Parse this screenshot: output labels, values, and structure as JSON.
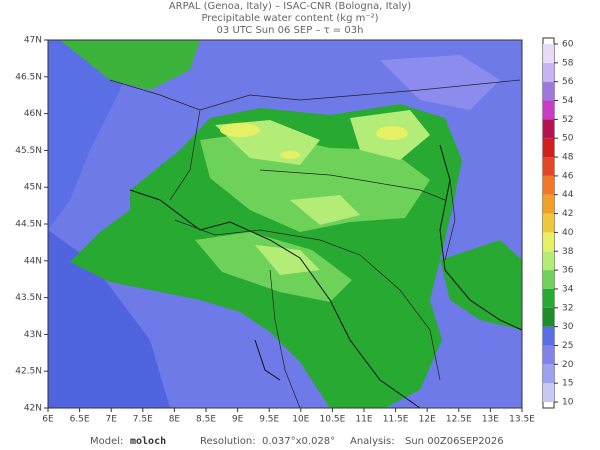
{
  "header": {
    "line1": "ARPAL (Genoa, Italy)  –  ISAC-CNR (Bologna, Italy)",
    "line2": "Precipitable water content (kg m⁻²)",
    "line3": "03 UTC Sun 06 SEP  –  τ = 03h"
  },
  "map": {
    "xlim": [
      6,
      13.5
    ],
    "xticks": [
      {
        "value": 6,
        "label": "6E"
      },
      {
        "value": 6.5,
        "label": "6.5E"
      },
      {
        "value": 7,
        "label": "7E"
      },
      {
        "value": 7.5,
        "label": "7.5E"
      },
      {
        "value": 8,
        "label": "8E"
      },
      {
        "value": 8.5,
        "label": "8.5E"
      },
      {
        "value": 9,
        "label": "9E"
      },
      {
        "value": 9.5,
        "label": "9.5E"
      },
      {
        "value": 10,
        "label": "10E"
      },
      {
        "value": 10.5,
        "label": "10.5E"
      },
      {
        "value": 11,
        "label": "11E"
      },
      {
        "value": 11.5,
        "label": "11.5E"
      },
      {
        "value": 12,
        "label": "12E"
      },
      {
        "value": 12.5,
        "label": "12.5E"
      },
      {
        "value": 13,
        "label": "13E"
      },
      {
        "value": 13.5,
        "label": "13.5E"
      }
    ],
    "ylim": [
      42,
      47
    ],
    "yticks": [
      {
        "value": 42,
        "label": "42N"
      },
      {
        "value": 42.5,
        "label": "42.5N"
      },
      {
        "value": 43,
        "label": "43N"
      },
      {
        "value": 43.5,
        "label": "43.5N"
      },
      {
        "value": 44,
        "label": "44N"
      },
      {
        "value": 44.5,
        "label": "44.5N"
      },
      {
        "value": 45,
        "label": "45N"
      },
      {
        "value": 45.5,
        "label": "45.5N"
      },
      {
        "value": 46,
        "label": "46N"
      },
      {
        "value": 46.5,
        "label": "46.5N"
      },
      {
        "value": 47,
        "label": "47N"
      }
    ]
  },
  "colorbar": {
    "levels": [
      10,
      15,
      20,
      25,
      30,
      32,
      34,
      36,
      38,
      40,
      42,
      44,
      46,
      48,
      50,
      52,
      54,
      56,
      58,
      60
    ],
    "colors": [
      "#c8c8f4",
      "#a0a0f0",
      "#8282e8",
      "#5a6ee6",
      "#1e8c28",
      "#28aa32",
      "#6ed25a",
      "#b4ec78",
      "#e6f064",
      "#f0c83c",
      "#f0a028",
      "#f07828",
      "#e64628",
      "#d21e1e",
      "#b41450",
      "#c83cc8",
      "#a078dc",
      "#c8b4f0",
      "#e6dcf8"
    ]
  },
  "footer": {
    "model_label": "Model:",
    "model": "moloch",
    "resolution_label": "Resolution:",
    "resolution": "0.037°x0.028°",
    "analysis_label": "Analysis:",
    "analysis": "Sun 00Z06SEP2026"
  }
}
